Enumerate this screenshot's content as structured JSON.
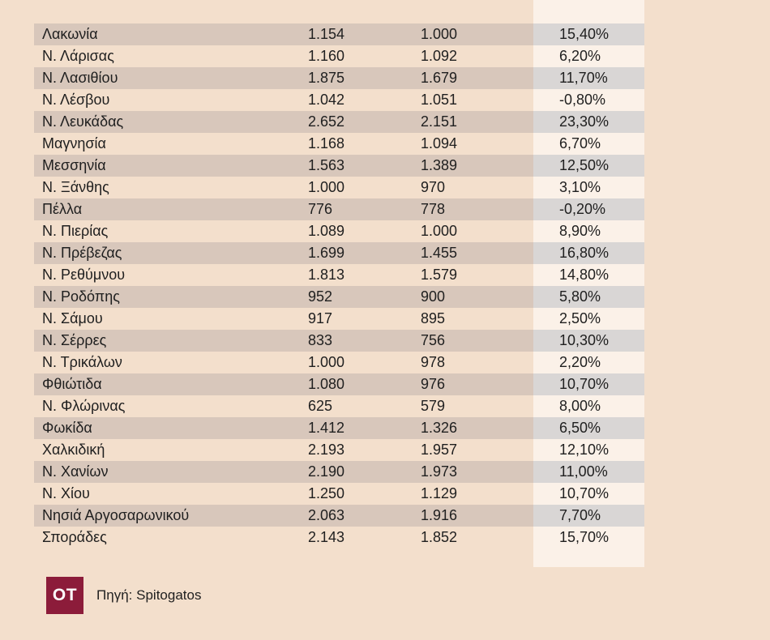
{
  "chart_data": {
    "type": "table",
    "rows": [
      {
        "name": "Λακωνία",
        "v1": "1.154",
        "v2": "1.000",
        "pct": "15,40%"
      },
      {
        "name": "Ν. Λάρισας",
        "v1": "1.160",
        "v2": "1.092",
        "pct": "6,20%"
      },
      {
        "name": "Ν. Λασιθίου",
        "v1": "1.875",
        "v2": "1.679",
        "pct": "11,70%"
      },
      {
        "name": "Ν. Λέσβου",
        "v1": "1.042",
        "v2": "1.051",
        "pct": "-0,80%"
      },
      {
        "name": "Ν. Λευκάδας",
        "v1": "2.652",
        "v2": "2.151",
        "pct": "23,30%"
      },
      {
        "name": "Μαγνησία",
        "v1": "1.168",
        "v2": "1.094",
        "pct": "6,70%"
      },
      {
        "name": "Μεσσηνία",
        "v1": "1.563",
        "v2": "1.389",
        "pct": "12,50%"
      },
      {
        "name": "Ν. Ξάνθης",
        "v1": "1.000",
        "v2": "970",
        "pct": "3,10%"
      },
      {
        "name": "Πέλλα",
        "v1": "776",
        "v2": "778",
        "pct": "-0,20%"
      },
      {
        "name": "Ν. Πιερίας",
        "v1": "1.089",
        "v2": "1.000",
        "pct": "8,90%"
      },
      {
        "name": "Ν. Πρέβεζας",
        "v1": "1.699",
        "v2": "1.455",
        "pct": "16,80%"
      },
      {
        "name": "Ν. Ρεθύμνου",
        "v1": "1.813",
        "v2": "1.579",
        "pct": "14,80%"
      },
      {
        "name": "Ν. Ροδόπης",
        "v1": "952",
        "v2": "900",
        "pct": "5,80%"
      },
      {
        "name": "Ν. Σάμου",
        "v1": "917",
        "v2": "895",
        "pct": "2,50%"
      },
      {
        "name": "Ν. Σέρρες",
        "v1": "833",
        "v2": "756",
        "pct": "10,30%"
      },
      {
        "name": "Ν. Τρικάλων",
        "v1": "1.000",
        "v2": "978",
        "pct": "2,20%"
      },
      {
        "name": "Φθιώτιδα",
        "v1": "1.080",
        "v2": "976",
        "pct": "10,70%"
      },
      {
        "name": "Ν. Φλώρινας",
        "v1": "625",
        "v2": "579",
        "pct": "8,00%"
      },
      {
        "name": "Φωκίδα",
        "v1": "1.412",
        "v2": "1.326",
        "pct": "6,50%"
      },
      {
        "name": "Χαλκιδική",
        "v1": "2.193",
        "v2": "1.957",
        "pct": "12,10%"
      },
      {
        "name": "Ν. Χανίων",
        "v1": "2.190",
        "v2": "1.973",
        "pct": "11,00%"
      },
      {
        "name": "Ν. Χίου",
        "v1": "1.250",
        "v2": "1.129",
        "pct": "10,70%"
      },
      {
        "name": "Νησιά Αργοσαρωνικού",
        "v1": "2.063",
        "v2": "1.916",
        "pct": "7,70%"
      },
      {
        "name": "Σποράδες",
        "v1": "2.143",
        "v2": "1.852",
        "pct": "15,70%"
      }
    ]
  },
  "footer": {
    "logo_text": "OT",
    "source_text": "Πηγή: Spitogatos"
  },
  "colors": {
    "background": "#f3dfcc",
    "highlight_column": "#fbf1e8",
    "row_shade": "#d8c7bb",
    "row_shade_highlight": "#d9d6d5",
    "logo_bg": "#8c1c3a"
  }
}
